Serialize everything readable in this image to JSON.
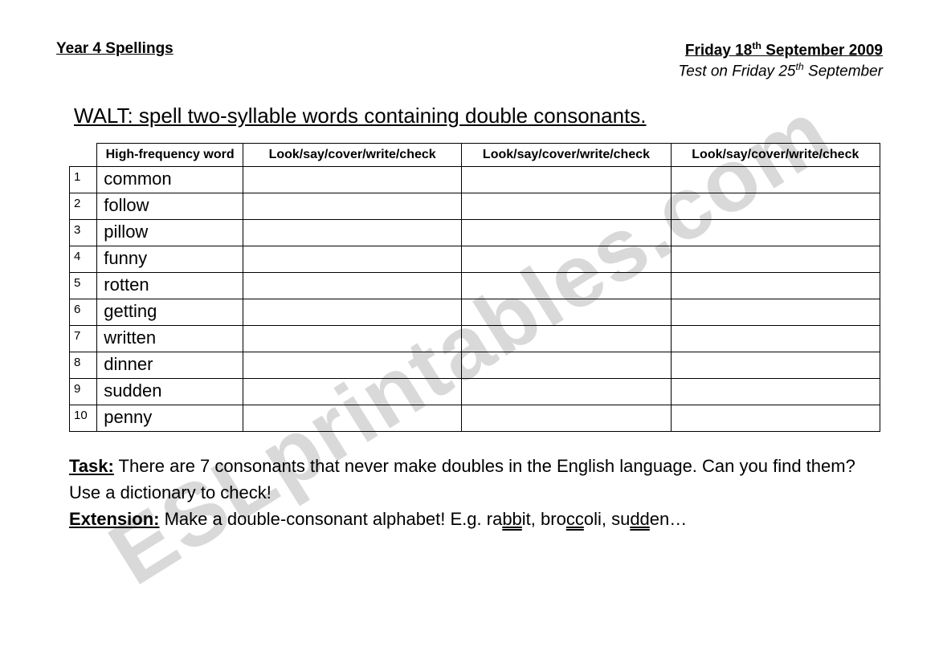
{
  "header": {
    "left": "Year 4 Spellings",
    "date_prefix": "Friday 18",
    "date_sup": "th",
    "date_suffix": " September 2009",
    "sub_prefix": "Test on Friday 25",
    "sub_sup": "th",
    "sub_suffix": " September"
  },
  "walt": "WALT: spell two-syllable words containing double consonants.",
  "table": {
    "col_num_blank": "",
    "col_word": "High-frequency word",
    "col_check": "Look/say/cover/write/check",
    "rows": [
      {
        "n": "1",
        "word": "common"
      },
      {
        "n": "2",
        "word": "follow"
      },
      {
        "n": "3",
        "word": "pillow"
      },
      {
        "n": "4",
        "word": "funny"
      },
      {
        "n": "5",
        "word": "rotten"
      },
      {
        "n": "6",
        "word": "getting"
      },
      {
        "n": "7",
        "word": "written"
      },
      {
        "n": "8",
        "word": "dinner"
      },
      {
        "n": "9",
        "word": "sudden"
      },
      {
        "n": "10",
        "word": "penny"
      }
    ]
  },
  "task": {
    "label": "Task:",
    "text": " There are 7 consonants that never make doubles in the English language. Can you find them? Use a dictionary to check!"
  },
  "extension": {
    "label": "Extension:",
    "text_a": " Make a double-consonant alphabet! E.g. ra",
    "bb": "bb",
    "text_b": "it, bro",
    "cc": "cc",
    "text_c": "oli, su",
    "dd": "dd",
    "text_d": "en…"
  },
  "watermark": "ESLprintables.com"
}
